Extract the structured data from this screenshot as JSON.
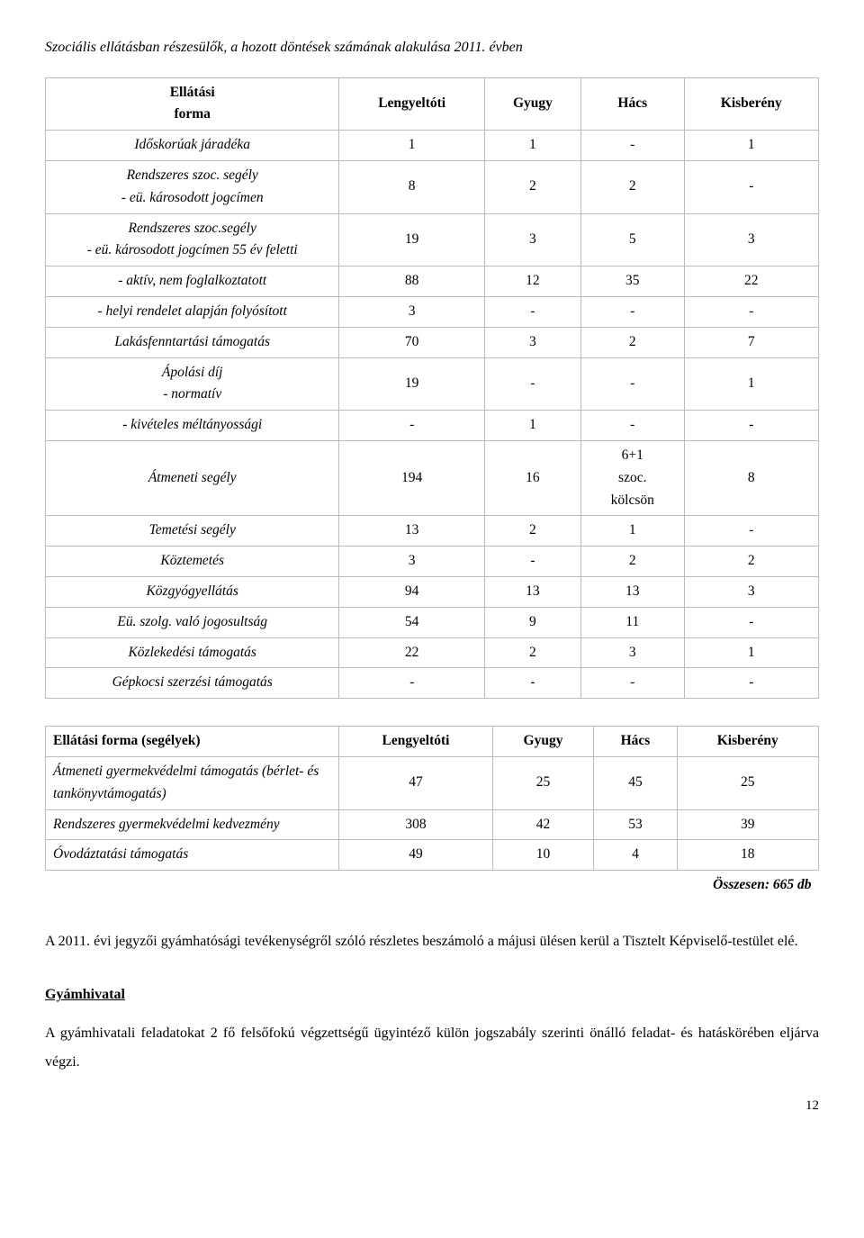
{
  "title": "Szociális ellátásban részesülők, a hozott döntések számának alakulása 2011. évben",
  "table1": {
    "headers": [
      "Ellátási\nforma",
      "Lengyeltóti",
      "Gyugy",
      "Hács",
      "Kisberény"
    ],
    "rows": [
      {
        "label": "Időskorúak járadéka",
        "c": [
          "1",
          "1",
          "-",
          "1"
        ]
      },
      {
        "label": "Rendszeres szoc. segély\n- eü. károsodott jogcímen",
        "c": [
          "8",
          "2",
          "2",
          "-"
        ]
      },
      {
        "label": "Rendszeres szoc.segély\n- eü. károsodott jogcímen 55 év feletti",
        "c": [
          "19",
          "3",
          "5",
          "3"
        ]
      },
      {
        "label": "- aktív, nem foglalkoztatott",
        "c": [
          "88",
          "12",
          "35",
          "22"
        ]
      },
      {
        "label": "- helyi rendelet alapján folyósított",
        "c": [
          "3",
          "-",
          "-",
          "-"
        ]
      },
      {
        "label": "Lakásfenntartási támogatás",
        "c": [
          "70",
          "3",
          "2",
          "7"
        ]
      },
      {
        "label": "Ápolási díj\n- normatív",
        "c": [
          "19",
          "-",
          "-",
          "1"
        ]
      },
      {
        "label": "- kivételes méltányossági",
        "c": [
          "-",
          "1",
          "-",
          "-"
        ]
      },
      {
        "label": "Átmeneti segély",
        "c": [
          "194",
          "16",
          "6+1\nszoc.\nkölcsön",
          "8"
        ]
      },
      {
        "label": "Temetési segély",
        "c": [
          "13",
          "2",
          "1",
          "-"
        ]
      },
      {
        "label": "Köztemetés",
        "c": [
          "3",
          "-",
          "2",
          "2"
        ]
      },
      {
        "label": "Közgyógyellátás",
        "c": [
          "94",
          "13",
          "13",
          "3"
        ]
      },
      {
        "label": "Eü. szolg. való jogosultság",
        "c": [
          "54",
          "9",
          "11",
          "-"
        ]
      },
      {
        "label": "Közlekedési támogatás",
        "c": [
          "22",
          "2",
          "3",
          "1"
        ]
      },
      {
        "label": "Gépkocsi szerzési támogatás",
        "c": [
          "-",
          "-",
          "-",
          "-"
        ]
      }
    ]
  },
  "table2": {
    "headers": [
      "Ellátási forma (segélyek)",
      "Lengyeltóti",
      "Gyugy",
      "Hács",
      "Kisberény"
    ],
    "rows": [
      {
        "label": "Átmeneti gyermekvédelmi támogatás (bérlet- és tankönyvtámogatás)",
        "c": [
          "47",
          "25",
          "45",
          "25"
        ]
      },
      {
        "label": "Rendszeres gyermekvédelmi kedvezmény",
        "c": [
          "308",
          "42",
          "53",
          "39"
        ]
      },
      {
        "label": "Óvodáztatási támogatás",
        "c": [
          "49",
          "10",
          "4",
          "18"
        ]
      }
    ],
    "summary": "Összesen:  665 db"
  },
  "para1": "A 2011. évi jegyzői gyámhatósági tevékenységről szóló részletes beszámoló a májusi ülésen kerül a Tisztelt Képviselő-testület elé.",
  "section_head": "Gyámhivatal",
  "para2": "A gyámhivatali feladatokat 2 fő felsőfokú végzettségű ügyintéző külön jogszabály szerinti önálló feladat- és hatáskörében eljárva végzi.",
  "pagenum": "12"
}
